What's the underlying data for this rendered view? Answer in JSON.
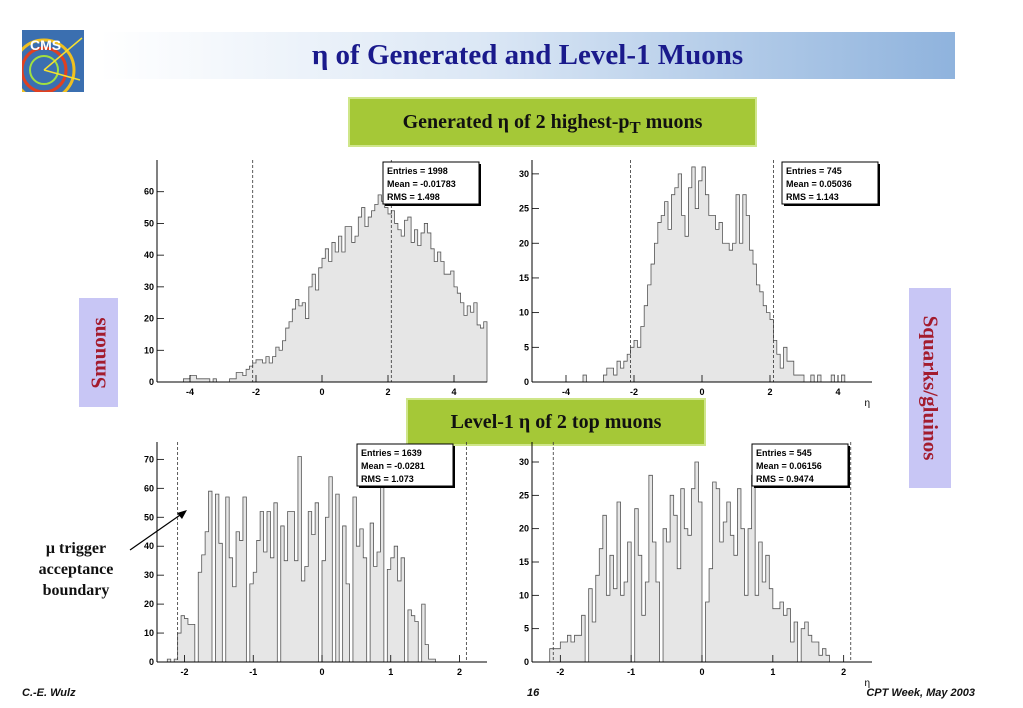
{
  "title": "η of Generated and Level-1 Muons",
  "generated_label": "Generated η of 2 highest-p",
  "generated_sub": "T",
  "generated_suffix": " muons",
  "level1_label": "Level-1 η of 2 top muons",
  "smuons_label": "Smuons",
  "squarks_label": "Squarks/gluinos",
  "annotation": [
    "μ trigger",
    "acceptance",
    "boundary"
  ],
  "footer": {
    "author": "C.-E. Wulz",
    "page": "16",
    "event": "CPT Week, May 2003"
  },
  "logo_text": "CMS",
  "colors": {
    "title": "#1a1a8c",
    "green_box": "#a5c837",
    "side_box": "#c8c6f5",
    "side_text": "#a31c2e",
    "hist_fill": "#e6e6e6"
  },
  "chart_data": [
    {
      "type": "bar",
      "id": "gen-smuons",
      "xlim": [
        -5,
        5
      ],
      "ylim": [
        0,
        70
      ],
      "yticks": [
        0,
        10,
        20,
        30,
        40,
        50,
        60
      ],
      "xticks": [
        -4,
        -2,
        0,
        2,
        4
      ],
      "xlabel": "",
      "boundary_lines": [
        -2.1,
        2.1
      ],
      "stats": {
        "entries": "Entries = 1998",
        "mean": "Mean  = -0.01783",
        "rms": "RMS   = 1.498"
      },
      "bin_width": 0.1,
      "values": [
        0,
        0,
        0,
        0,
        1,
        1,
        2,
        2,
        1,
        1,
        1,
        1,
        0,
        1,
        0,
        0,
        0,
        0,
        1,
        1,
        3,
        3,
        2,
        4,
        5,
        6,
        7,
        7,
        6,
        8,
        6,
        8,
        11,
        10,
        13,
        17,
        19,
        23,
        26,
        24,
        25,
        20,
        30,
        34,
        29,
        36,
        39,
        42,
        38,
        44,
        41,
        46,
        41,
        49,
        49,
        44,
        46,
        52,
        55,
        49,
        52,
        54,
        56,
        59,
        57,
        55,
        53,
        54,
        50,
        48,
        46,
        51,
        52,
        44,
        48,
        43,
        47,
        50,
        47,
        42,
        38,
        41,
        38,
        34,
        34,
        35,
        30,
        28,
        25,
        21,
        24,
        22,
        25,
        18,
        17,
        19,
        17,
        13,
        13,
        11,
        8,
        7,
        9,
        8,
        6,
        8,
        4,
        5,
        4,
        5,
        3,
        2,
        3,
        1,
        1,
        1,
        0,
        1,
        0,
        0,
        0,
        0,
        0,
        0,
        0,
        0,
        0,
        0,
        0,
        0
      ],
      "x_start": -4.6
    },
    {
      "type": "bar",
      "id": "gen-squarks",
      "xlim": [
        -5,
        5
      ],
      "ylim": [
        0,
        32
      ],
      "yticks": [
        0,
        5,
        10,
        15,
        20,
        25,
        30
      ],
      "xticks": [
        -4,
        -2,
        0,
        2,
        4
      ],
      "xlabel": "η",
      "boundary_lines": [
        -2.1,
        2.1
      ],
      "stats": {
        "entries": "Entries = 745",
        "mean": "Mean  = 0.05036",
        "rms": "RMS   = 1.143"
      },
      "bin_width": 0.1,
      "values": [
        0,
        1,
        0,
        0,
        0,
        0,
        0,
        1,
        2,
        2,
        1,
        3,
        2,
        3,
        4,
        5,
        6,
        5,
        8,
        11,
        14,
        17,
        20,
        23,
        24,
        26,
        22,
        27,
        28,
        30,
        24,
        21,
        28,
        31,
        25,
        29,
        31,
        27,
        24,
        24,
        22,
        23,
        20,
        20,
        19,
        20,
        27,
        20,
        27,
        24,
        19,
        17,
        14,
        13,
        11,
        10,
        9,
        6,
        4,
        2,
        5,
        3,
        3,
        1,
        1,
        1,
        0,
        0,
        1,
        0,
        1,
        0,
        0,
        0,
        1,
        0,
        0,
        1,
        0,
        0,
        0,
        0,
        0,
        0
      ],
      "x_start": -3.6
    },
    {
      "type": "bar",
      "id": "l1-smuons",
      "xlim": [
        -2.4,
        2.4
      ],
      "ylim": [
        0,
        76
      ],
      "yticks": [
        0,
        10,
        20,
        30,
        40,
        50,
        60,
        70
      ],
      "xticks": [
        -2,
        -1,
        0,
        1,
        2
      ],
      "xlabel": "",
      "boundary_lines": [
        -2.1,
        2.1
      ],
      "stats": {
        "entries": "Entries = 1639",
        "mean": "Mean  = -0.0281",
        "rms": "RMS   = 1.073"
      },
      "bin_width": 0.05,
      "values": [
        1,
        0,
        1,
        10,
        16,
        15,
        13,
        13,
        0,
        31,
        37,
        45,
        59,
        0,
        58,
        41,
        0,
        57,
        36,
        26,
        45,
        42,
        57,
        0,
        27,
        31,
        42,
        52,
        38,
        52,
        36,
        55,
        0,
        47,
        35,
        52,
        52,
        35,
        71,
        28,
        33,
        52,
        44,
        55,
        0,
        35,
        50,
        64,
        0,
        58,
        0,
        47,
        27,
        0,
        57,
        40,
        46,
        36,
        0,
        48,
        33,
        38,
        62,
        0,
        32,
        36,
        40,
        28,
        36,
        0,
        18,
        16,
        14,
        0,
        20,
        6,
        1,
        1,
        0,
        0,
        0,
        0,
        0,
        0,
        0,
        0,
        0,
        0,
        0,
        0,
        0,
        0,
        0,
        0,
        0,
        0,
        0,
        0
      ],
      "x_start": -2.25
    },
    {
      "type": "bar",
      "id": "l1-squarks",
      "xlim": [
        -2.4,
        2.4
      ],
      "ylim": [
        0,
        33
      ],
      "yticks": [
        0,
        5,
        10,
        15,
        20,
        25,
        30
      ],
      "xticks": [
        -2,
        -1,
        0,
        1,
        2
      ],
      "xlabel": "η",
      "boundary_lines": [
        -2.1,
        2.1
      ],
      "stats": {
        "entries": "Entries = 545",
        "mean": "Mean  = 0.06156",
        "rms": "RMS   = 0.9474"
      },
      "bin_width": 0.05,
      "values": [
        0,
        2,
        2,
        2,
        3,
        3,
        4,
        3,
        4,
        4,
        7,
        0,
        11,
        6,
        13,
        17,
        22,
        10,
        16,
        11,
        24,
        10,
        12,
        18,
        0,
        23,
        16,
        7,
        12,
        28,
        18,
        12,
        0,
        20,
        18,
        25,
        22,
        14,
        26,
        20,
        19,
        26,
        30,
        24,
        0,
        9,
        14,
        27,
        26,
        18,
        21,
        24,
        19,
        16,
        26,
        20,
        10,
        20,
        28,
        10,
        18,
        12,
        16,
        11,
        8,
        8,
        9,
        7,
        8,
        3,
        6,
        0,
        5,
        6,
        4,
        3,
        3,
        1,
        2,
        1,
        0,
        0,
        0,
        0,
        0,
        0,
        0,
        0,
        0,
        0,
        0,
        0,
        0,
        0,
        0,
        0
      ],
      "x_start": -2.2
    }
  ]
}
